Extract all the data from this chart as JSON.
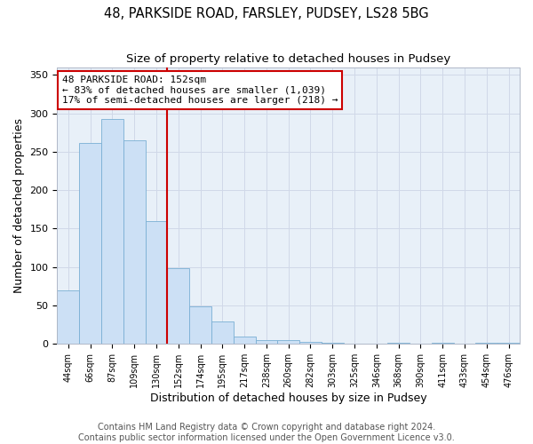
{
  "title1": "48, PARKSIDE ROAD, FARSLEY, PUDSEY, LS28 5BG",
  "title2": "Size of property relative to detached houses in Pudsey",
  "xlabel": "Distribution of detached houses by size in Pudsey",
  "ylabel": "Number of detached properties",
  "bar_color": "#cce0f5",
  "bar_edge_color": "#7aafd4",
  "vline_color": "#cc0000",
  "annotation_line1": "48 PARKSIDE ROAD: 152sqm",
  "annotation_line2": "← 83% of detached houses are smaller (1,039)",
  "annotation_line3": "17% of semi-detached houses are larger (218) →",
  "annotation_box_color": "#cc0000",
  "categories": [
    "44sqm",
    "66sqm",
    "87sqm",
    "109sqm",
    "130sqm",
    "152sqm",
    "174sqm",
    "195sqm",
    "217sqm",
    "238sqm",
    "260sqm",
    "282sqm",
    "303sqm",
    "325sqm",
    "346sqm",
    "368sqm",
    "390sqm",
    "411sqm",
    "433sqm",
    "454sqm",
    "476sqm"
  ],
  "values": [
    70,
    261,
    293,
    265,
    160,
    98,
    49,
    29,
    10,
    5,
    5,
    3,
    1,
    0,
    0,
    2,
    0,
    2,
    0,
    2,
    1
  ],
  "ylim": [
    0,
    360
  ],
  "yticks": [
    0,
    50,
    100,
    150,
    200,
    250,
    300,
    350
  ],
  "grid_color": "#d0d8e8",
  "plot_bg_color": "#e8f0f8",
  "fig_bg_color": "#ffffff",
  "footer1": "Contains HM Land Registry data © Crown copyright and database right 2024.",
  "footer2": "Contains public sector information licensed under the Open Government Licence v3.0.",
  "title_fontsize": 10.5,
  "subtitle_fontsize": 9.5,
  "footer_fontsize": 7,
  "vline_idx": 5
}
